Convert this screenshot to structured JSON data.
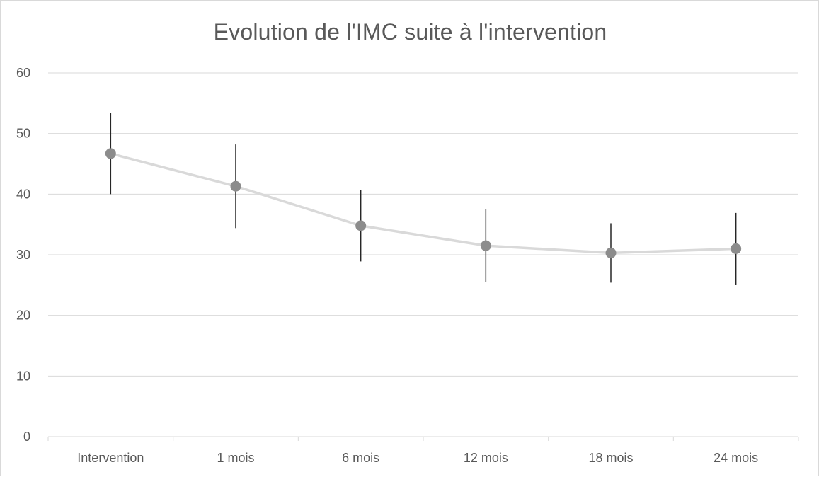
{
  "chart_data": {
    "type": "line",
    "title": "Evolution de l'IMC suite à l'intervention",
    "xlabel": "",
    "ylabel": "",
    "categories": [
      "Intervention",
      "1 mois",
      "6 mois",
      "12 mois",
      "18 mois",
      "24 mois"
    ],
    "series": [
      {
        "values": [
          46.7,
          41.3,
          34.8,
          31.5,
          30.3,
          31.0
        ],
        "error_low": [
          40.0,
          34.4,
          28.9,
          25.5,
          25.4,
          25.1
        ],
        "error_high": [
          53.4,
          48.2,
          40.7,
          37.5,
          35.2,
          36.9
        ]
      }
    ],
    "ylim": [
      0,
      60
    ],
    "yticks": [
      0,
      10,
      20,
      30,
      40,
      50,
      60
    ],
    "grid": true,
    "legend": "none",
    "colors": {
      "line": "#d9d9d9",
      "marker": "#8c8c8c",
      "error_bar": "#262626",
      "grid": "#d9d9d9",
      "text": "#595959"
    }
  }
}
